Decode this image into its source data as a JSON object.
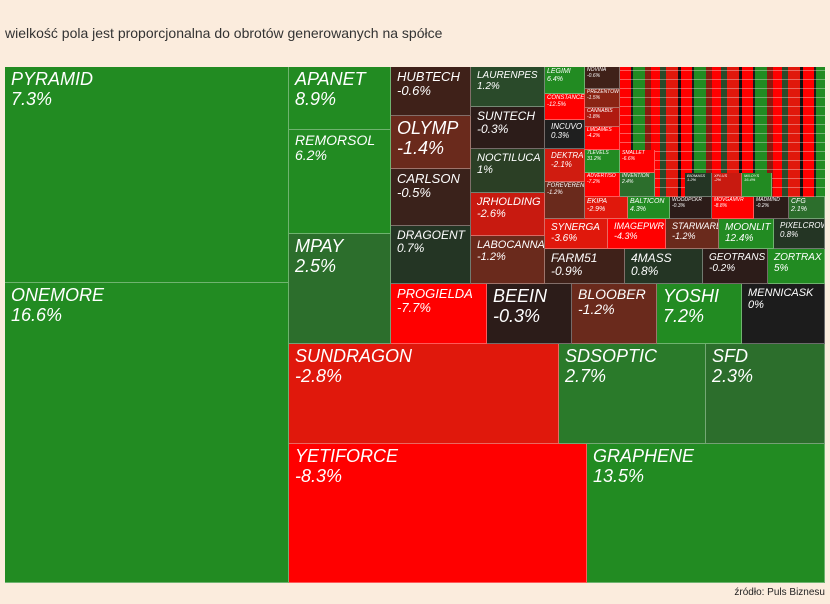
{
  "header": {
    "title": "wielkość pola jest proporcjonalna do obrotów generowanych na spółce"
  },
  "tiles": [
    {
      "name": "PYRAMID",
      "change": "7.3%"
    },
    {
      "name": "ONEMORE",
      "change": "16.6%"
    },
    {
      "name": "APANET",
      "change": "8.9%"
    },
    {
      "name": "REMORSOL",
      "change": "6.2%"
    },
    {
      "name": "MPAY",
      "change": "2.5%"
    },
    {
      "name": "HUBTECH",
      "change": "-0.6%"
    },
    {
      "name": "OLYMP",
      "change": "-1.4%"
    },
    {
      "name": "CARLSON",
      "change": "-0.5%"
    },
    {
      "name": "DRAGOENT",
      "change": "0.7%"
    },
    {
      "name": "LAURENPES",
      "change": "1.2%"
    },
    {
      "name": "SUNTECH",
      "change": "-0.3%"
    },
    {
      "name": "NOCTILUCA",
      "change": "1%"
    },
    {
      "name": "JRHOLDING",
      "change": "-2.6%"
    },
    {
      "name": "LABOCANNA",
      "change": "-1.2%"
    },
    {
      "name": "LEGIMI",
      "change": "6.4%"
    },
    {
      "name": "CONSTANCE",
      "change": "-12.5%"
    },
    {
      "name": "INCUVO",
      "change": "0.3%"
    },
    {
      "name": "DEKTRA",
      "change": "-2.1%"
    },
    {
      "name": "FOREVEREN",
      "change": "-1.2%"
    },
    {
      "name": "NOVINA",
      "change": "-0.6%"
    },
    {
      "name": "PREZENTOWN",
      "change": "-1.5%"
    },
    {
      "name": "CANNABIS",
      "change": "-1.8%"
    },
    {
      "name": "LMDAMES",
      "change": "-4.2%"
    },
    {
      "name": "7LEVELS",
      "change": "31.2%"
    },
    {
      "name": "ADVERTISO",
      "change": "-7.2%"
    },
    {
      "name": "SMALLET",
      "change": "-6.6%"
    },
    {
      "name": "INVENTION",
      "change": "2.4%"
    },
    {
      "name": "BIOMASS",
      "change": "1.2%"
    },
    {
      "name": "XPLUS",
      "change": "-2%"
    },
    {
      "name": "MILOYS",
      "change": "16.4%"
    },
    {
      "name": "EKIPA",
      "change": "-2.9%"
    },
    {
      "name": "BALTICON",
      "change": "4.3%"
    },
    {
      "name": "WOODPCKR",
      "change": "-0.3%"
    },
    {
      "name": "MOVGAMVR",
      "change": "-8.8%"
    },
    {
      "name": "MADMIND",
      "change": "-0.2%"
    },
    {
      "name": "CFG",
      "change": "2.1%"
    },
    {
      "name": "SYNERGA",
      "change": "-3.6%"
    },
    {
      "name": "IMAGEPWR",
      "change": "-4.3%"
    },
    {
      "name": "STARWARD",
      "change": "-1.2%"
    },
    {
      "name": "MOONLIT",
      "change": "12.4%"
    },
    {
      "name": "PIXELCROW",
      "change": "0.8%"
    },
    {
      "name": "FARM51",
      "change": "-0.9%"
    },
    {
      "name": "4MASS",
      "change": "0.8%"
    },
    {
      "name": "GEOTRANS",
      "change": "-0.2%"
    },
    {
      "name": "ZORTRAX",
      "change": "5%"
    },
    {
      "name": "PROGIELDA",
      "change": "-7.7%"
    },
    {
      "name": "BEEIN",
      "change": "-0.3%"
    },
    {
      "name": "BLOOBER",
      "change": "-1.2%"
    },
    {
      "name": "YOSHI",
      "change": "7.2%"
    },
    {
      "name": "MENNICASK",
      "change": "0%"
    },
    {
      "name": "SUNDRAGON",
      "change": "-2.8%"
    },
    {
      "name": "SDSOPTIC",
      "change": "2.7%"
    },
    {
      "name": "SFD",
      "change": "2.3%"
    },
    {
      "name": "YETIFORCE",
      "change": "-8.3%"
    },
    {
      "name": "GRAPHENE",
      "change": "13.5%"
    }
  ],
  "footer": {
    "source": "źródło: Puls Biznesu"
  }
}
